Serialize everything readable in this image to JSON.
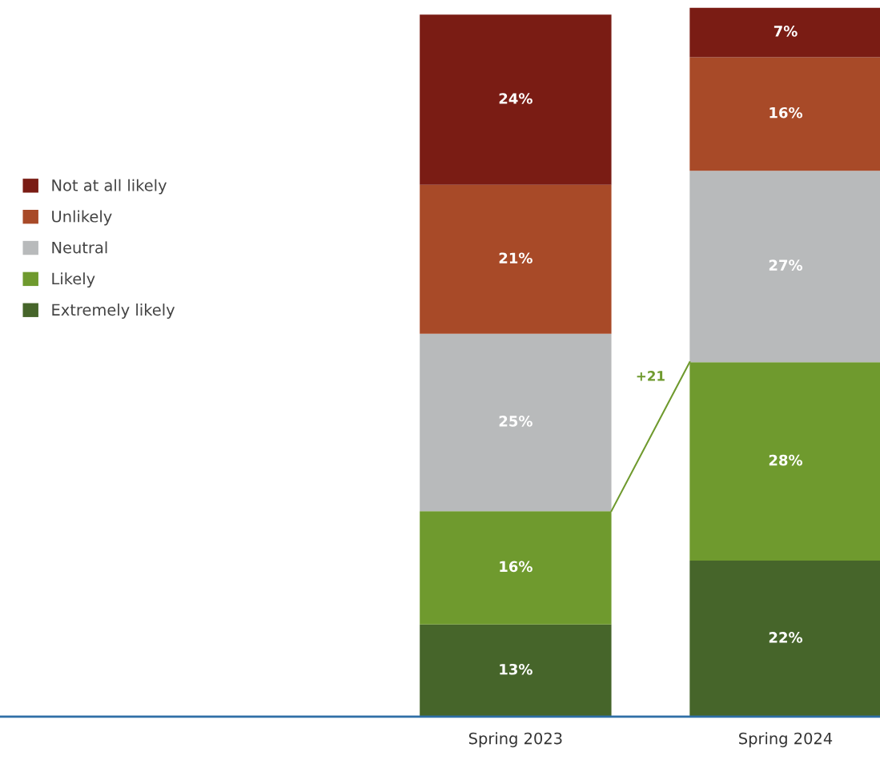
{
  "chart_data": {
    "type": "bar",
    "stacked": true,
    "categories": [
      "Spring 2023",
      "Spring 2024"
    ],
    "series": [
      {
        "name": "Extremely likely",
        "color": "#46652a",
        "values": [
          13,
          22
        ],
        "value_labels": [
          "13%",
          "22%"
        ]
      },
      {
        "name": "Likely",
        "color": "#6f9a2e",
        "values": [
          16,
          28
        ],
        "value_labels": [
          "16%",
          "28%"
        ]
      },
      {
        "name": "Neutral",
        "color": "#b8babb",
        "values": [
          25,
          27
        ],
        "value_labels": [
          "25%",
          "27%"
        ]
      },
      {
        "name": "Unlikely",
        "color": "#a84a28",
        "values": [
          21,
          16
        ],
        "value_labels": [
          "21%",
          "16%"
        ]
      },
      {
        "name": "Not at all likely",
        "color": "#7a1c14",
        "values": [
          24,
          7
        ],
        "value_labels": [
          "24%",
          "7%"
        ]
      }
    ],
    "legend": "left",
    "grid": false,
    "annotations": [
      "+21"
    ]
  }
}
